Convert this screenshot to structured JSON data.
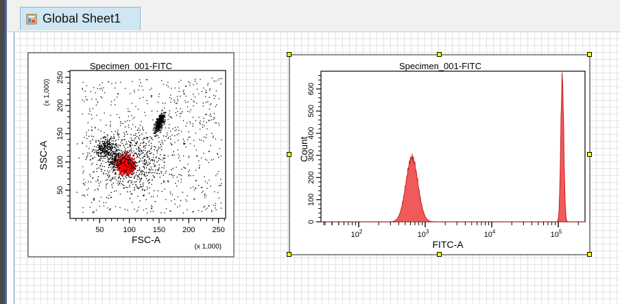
{
  "sheet_tab": {
    "label": "Global Sheet1",
    "icon": "sheet-icon"
  },
  "plots": [
    {
      "title": "Specimen_001-FITC",
      "type": "scatter",
      "xlabel": "FSC-A",
      "ylabel": "SSC-A",
      "x_multiplier": "(x 1,000)",
      "y_multiplier": "(x 1,000)",
      "xlim": [
        0,
        262
      ],
      "ylim": [
        0,
        262
      ],
      "x_ticks": [
        "50",
        "100",
        "150",
        "200",
        "250"
      ],
      "y_ticks": [
        "50",
        "100",
        "150",
        "200",
        "250"
      ],
      "selected": false
    },
    {
      "title": "Specimen_001-FITC",
      "type": "histogram",
      "xlabel": "FITC-A",
      "ylabel": "Count",
      "x_scale": "log",
      "x_ticks": [
        "10^2",
        "10^3",
        "10^4",
        "10^5"
      ],
      "y_ticks": [
        "0",
        "100",
        "200",
        "300",
        "400",
        "500",
        "600"
      ],
      "ylim": [
        0,
        680
      ],
      "selected": true
    }
  ],
  "chart_data": [
    {
      "type": "scatter",
      "title": "Specimen_001-FITC",
      "xlabel": "FSC-A",
      "ylabel": "SSC-A",
      "xlim": [
        0,
        262
      ],
      "ylim": [
        0,
        262
      ],
      "clusters": [
        {
          "name": "",
          "color": "#000000",
          "center": [
            150,
            170
          ],
          "count": 400
        },
        {
          "name": "",
          "color": "#000000",
          "center": [
            60,
            125
          ],
          "count": 250
        },
        {
          "name": "",
          "color": "#000000",
          "center": [
            80,
            105
          ],
          "count": 200
        },
        {
          "name": "",
          "color": "#ff0000",
          "center": [
            92,
            95
          ],
          "count": 450
        },
        {
          "name": "",
          "color": "#000000",
          "center": [
            100,
            100
          ],
          "count": 600
        }
      ]
    },
    {
      "type": "area",
      "title": "Specimen_001-FITC",
      "xlabel": "FITC-A",
      "ylabel": "Count",
      "x_scale": "log",
      "ylim": [
        0,
        680
      ],
      "color": "#f05a5a",
      "peaks": [
        {
          "log10_center": 2.8,
          "height": 290,
          "width": 0.09
        },
        {
          "log10_center": 5.06,
          "height": 650,
          "width": 0.022
        }
      ]
    }
  ]
}
